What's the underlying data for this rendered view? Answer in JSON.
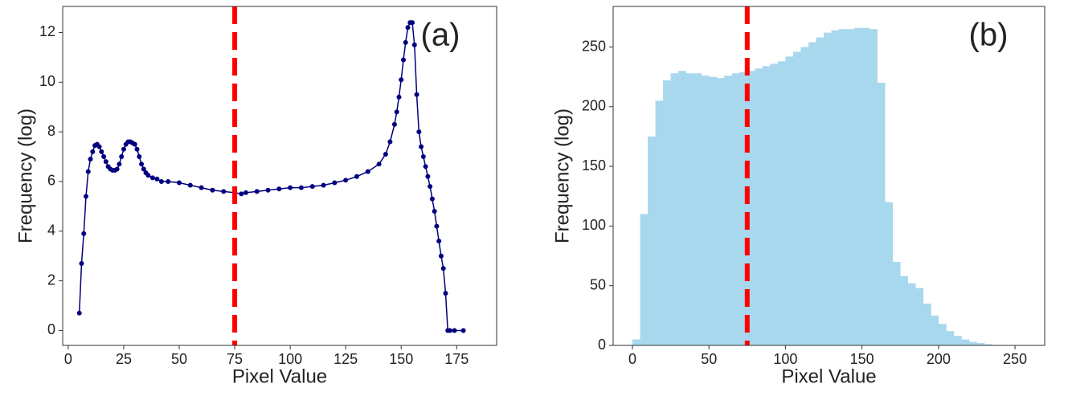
{
  "chart_data": [
    {
      "type": "line",
      "label": "(a)",
      "xlabel": "Pixel Value",
      "ylabel": "Frequency (log)",
      "color": "#000080",
      "vline": 75,
      "vline_color": "#ff0000",
      "xlim": [
        -2.5,
        193
      ],
      "xticks": [
        0,
        25,
        50,
        75,
        100,
        125,
        150,
        175
      ],
      "ylim": [
        -0.6,
        13.05
      ],
      "yticks": [
        0,
        2,
        4,
        6,
        8,
        10,
        12
      ],
      "x": [
        5,
        6,
        7,
        8,
        9,
        10,
        11,
        12,
        13,
        14,
        15,
        16,
        17,
        18,
        19,
        20,
        21,
        22,
        23,
        24,
        25,
        26,
        27,
        28,
        29,
        30,
        31,
        32,
        33,
        34,
        35,
        36,
        38,
        40,
        42,
        45,
        50,
        55,
        60,
        65,
        70,
        75,
        78,
        80,
        85,
        90,
        95,
        100,
        105,
        110,
        115,
        120,
        125,
        130,
        135,
        140,
        143,
        145,
        147,
        148,
        149,
        150,
        151,
        152,
        153,
        154,
        155,
        156,
        157,
        158,
        159,
        160,
        161,
        162,
        163,
        164,
        165,
        166,
        167,
        168,
        169,
        170,
        171,
        172,
        174,
        178
      ],
      "values": [
        0.7,
        2.7,
        3.9,
        5.4,
        6.4,
        6.9,
        7.2,
        7.45,
        7.5,
        7.4,
        7.2,
        7.0,
        6.8,
        6.6,
        6.5,
        6.45,
        6.45,
        6.5,
        6.7,
        7.0,
        7.3,
        7.5,
        7.6,
        7.6,
        7.55,
        7.5,
        7.3,
        7.0,
        6.7,
        6.5,
        6.35,
        6.25,
        6.15,
        6.1,
        6.0,
        6.0,
        5.95,
        5.85,
        5.75,
        5.65,
        5.6,
        5.55,
        5.5,
        5.55,
        5.6,
        5.65,
        5.7,
        5.75,
        5.75,
        5.8,
        5.85,
        5.95,
        6.05,
        6.2,
        6.4,
        6.7,
        7.1,
        7.6,
        8.3,
        8.8,
        9.4,
        10.1,
        10.9,
        11.6,
        12.2,
        12.4,
        12.4,
        11.5,
        9.5,
        8.0,
        7.4,
        7.0,
        6.6,
        6.2,
        5.8,
        5.3,
        4.8,
        4.2,
        3.6,
        3.0,
        2.5,
        1.5,
        0,
        0,
        0,
        0
      ]
    },
    {
      "type": "histogram",
      "label": "(b)",
      "xlabel": "Pixel Value",
      "ylabel": "Frequency (log)",
      "color": "#a8d8ee",
      "vline": 75,
      "vline_color": "#ff0000",
      "xlim": [
        -12.6,
        269.4
      ],
      "xticks": [
        0,
        50,
        100,
        150,
        200,
        250
      ],
      "ylim": [
        0,
        284
      ],
      "yticks": [
        0,
        50,
        100,
        150,
        200,
        250
      ],
      "bins": [
        0,
        5,
        10,
        15,
        20,
        25,
        30,
        35,
        40,
        45,
        50,
        55,
        60,
        65,
        70,
        75,
        80,
        85,
        90,
        95,
        100,
        105,
        110,
        115,
        120,
        125,
        130,
        135,
        140,
        145,
        150,
        155,
        160,
        165,
        170,
        175,
        180,
        185,
        190,
        195,
        200,
        205,
        210,
        215,
        220,
        225,
        230,
        235,
        240,
        245,
        250,
        255
      ],
      "values": [
        5,
        110,
        175,
        205,
        222,
        228,
        230,
        228,
        228,
        226,
        225,
        224,
        226,
        228,
        229,
        230,
        232,
        234,
        236,
        238,
        242,
        246,
        250,
        254,
        258,
        262,
        264,
        265,
        265,
        266,
        266,
        265,
        220,
        120,
        70,
        58,
        52,
        48,
        35,
        25,
        18,
        12,
        8,
        5,
        3,
        2,
        1,
        0,
        0,
        0,
        0
      ]
    }
  ]
}
